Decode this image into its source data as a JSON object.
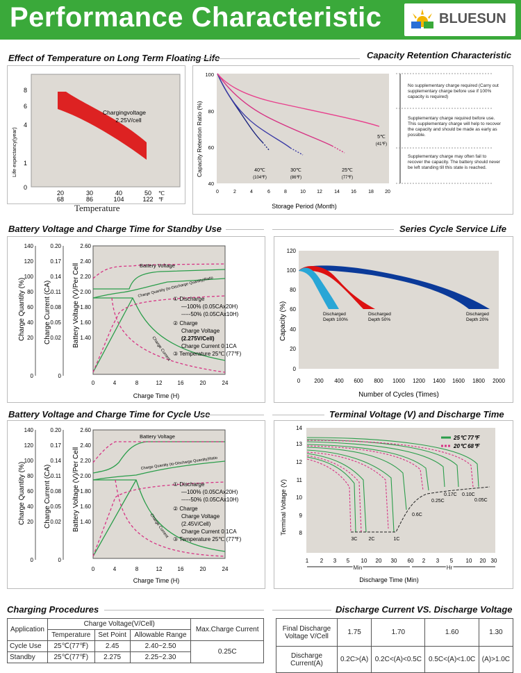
{
  "header": {
    "title": "Performance Characteristic",
    "brand": "BLUESUN",
    "color": "#3aa93a"
  },
  "sections": {
    "temp_life": "Effect of Temperature on Long Term Floating Life",
    "capacity_retention": "Capacity  Retention  Characteristic",
    "standby": "Battery Voltage and Charge Time for Standby Use",
    "cycle_life": "Series Cycle Service Life",
    "cycle_use": "Battery Voltage and Charge Time for Cycle Use",
    "terminal": "Terminal Voltage (V) and Discharge Time",
    "charging": "Charging Procedures",
    "discharge_cv": "Discharge Current VS. Discharge Voltage"
  },
  "temp_chart": {
    "ylabel": "Life expectancy(year)",
    "yticks": [
      "8",
      "6",
      "4",
      "1",
      "0"
    ],
    "xticks_c": [
      "20",
      "30",
      "40",
      "50"
    ],
    "xticks_f": [
      "68",
      "86",
      "104",
      "122"
    ],
    "unit_c": "℃",
    "unit_f": "℉",
    "xlabel": "Temperature",
    "note1": "Chargingvoltage",
    "note2": "2.25V/cell"
  },
  "cap_chart": {
    "ylabel": "Capacity Retention Ratio (%)",
    "xlabel": "Storage Period (Month)",
    "yticks": [
      "100",
      "80",
      "60",
      "40"
    ],
    "xticks": [
      "0",
      "2",
      "4",
      "6",
      "8",
      "10",
      "12",
      "14",
      "16",
      "18",
      "20"
    ],
    "labels": [
      {
        "c": "40℃",
        "f": "(104℉)"
      },
      {
        "c": "30℃",
        "f": "(86℉)"
      },
      {
        "c": "25℃",
        "f": "(77℉)"
      },
      {
        "c": "5℃",
        "f": "(41℉)"
      }
    ],
    "notes": [
      "No supplementary charge required (Carry out supplementary charge before use if 100% capacity is required)",
      "Supplementary charge required before use. This supplementary charge will help to recover  the capacity and should be made as early as possible.",
      "Supplementary charge may often fail to recover the capacity. The battery should never be left standing till this state is reached."
    ]
  },
  "standby_chart": {
    "ax1_label": "Charge Quantity (%)",
    "ax2_label": "Charge Current (CA)",
    "ax3_label": "Battery Voltage (V)/Per Cell",
    "ax1_ticks": [
      "140",
      "120",
      "100",
      "80",
      "60",
      "40",
      "20",
      "0"
    ],
    "ax2_ticks": [
      "0.20",
      "0.17",
      "0.14",
      "0.11",
      "0.08",
      "0.05",
      "0.02",
      "0"
    ],
    "ax3_ticks": [
      "2.60",
      "2.40",
      "2.20",
      "2.00",
      "1.80",
      "1.60",
      "1.40"
    ],
    "xticks": [
      "0",
      "4",
      "8",
      "12",
      "16",
      "20",
      "24"
    ],
    "xlabel": "Charge Time (H)",
    "voltage_label": "Battery Voltage",
    "quantity_label": "Charge Quantity (to-Discharge Quantity)Ratio",
    "current_label": "Charge Current",
    "legend": [
      "① Discharge",
      "—100% (0.05CAx20H)",
      "-----50% (0.05CAx10H)",
      "② Charge",
      "Charge Voltage",
      "(2.275V/Cell)",
      "Charge Current 0.1CA",
      "③ Temperature 25℃ (77℉)"
    ]
  },
  "cycle_life_chart": {
    "ylabel": "Capacity (%)",
    "xlabel": "Number of Cycles (Times)",
    "yticks": [
      "120",
      "100",
      "80",
      "60",
      "40",
      "20",
      "0"
    ],
    "xticks": [
      "0",
      "200",
      "400",
      "600",
      "800",
      "1000",
      "1200",
      "1400",
      "1600",
      "1800",
      "2000"
    ],
    "labels": [
      {
        "l1": "Discharged",
        "l2": "Depth 100%"
      },
      {
        "l1": "Discharged",
        "l2": "Depth 50%"
      },
      {
        "l1": "Discharged",
        "l2": "Depth 20%"
      }
    ],
    "colors": [
      "#29a6d6",
      "#dd1111",
      "#0b3a99"
    ]
  },
  "cycle_chart": {
    "ax1_ticks": [
      "140",
      "120",
      "100",
      "80",
      "60",
      "40",
      "20",
      "0"
    ],
    "ax2_ticks": [
      "0.20",
      "0.17",
      "0.14",
      "0.11",
      "0.08",
      "0.05",
      "0.02",
      "0"
    ],
    "ax3_ticks": [
      "2.60",
      "2.40",
      "2.20",
      "2.00",
      "1.80",
      "1.60",
      "1.40"
    ],
    "xticks": [
      "0",
      "4",
      "8",
      "12",
      "16",
      "20",
      "24"
    ],
    "xlabel": "Charge Time (H)",
    "voltage_label": "Battery Voltage",
    "quantity_label": "Charge Quantity (to-Discharge Quantity)Ratio",
    "current_label": "Charge Current",
    "legend": [
      "① Discharge",
      "—100% (0.05CAx20H)",
      "-----50% (0.05CAx10H)",
      "② Charge",
      "Charge Voltage",
      "(2.45V/Cell)",
      "Charge Current 0.1CA",
      "③ Temperature 25℃ (77℉)"
    ]
  },
  "terminal_chart": {
    "ylabel": "Terminal Voltage (V)",
    "xlabel": "Discharge Time (Min)",
    "yticks": [
      "14",
      "13",
      "12",
      "11",
      "10",
      "9",
      "8"
    ],
    "xticks_min": [
      "1",
      "2",
      "3",
      "5",
      "10",
      "20",
      "30",
      "60"
    ],
    "xticks_hr": [
      "2",
      "3",
      "5",
      "10",
      "20",
      "30"
    ],
    "min_label": "Min",
    "hr_label": "Hr",
    "legend": [
      "25℃ 77℉",
      "20℃ 68℉"
    ],
    "rates": [
      "3C",
      "2C",
      "1C",
      "0.6C",
      "0.25C",
      "0.17C",
      "0.10C",
      "0.05C"
    ]
  },
  "charging_table": {
    "h_app": "Application",
    "h_cv": "Charge Voltage(V/Cell)",
    "h_temp": "Temperature",
    "h_set": "Set Point",
    "h_range": "Allowable Range",
    "h_max": "Max.Charge Current",
    "rows": [
      {
        "app": "Cycle Use",
        "temp": "25℃(77℉)",
        "set": "2.45",
        "range": "2.40~2.50"
      },
      {
        "app": "Standby",
        "temp": "25℃(77℉)",
        "set": "2.275",
        "range": "2.25~2.30"
      }
    ],
    "max": "0.25C"
  },
  "discharge_table": {
    "h1": "Final Discharge Voltage V/Cell",
    "voltages": [
      "1.75",
      "1.70",
      "1.60",
      "1.30"
    ],
    "h2": "Discharge Current(A)",
    "currents": [
      "0.2C>(A)",
      "0.2C<(A)<0.5C",
      "0.5C<(A)<1.0C",
      "(A)>1.0C"
    ]
  }
}
